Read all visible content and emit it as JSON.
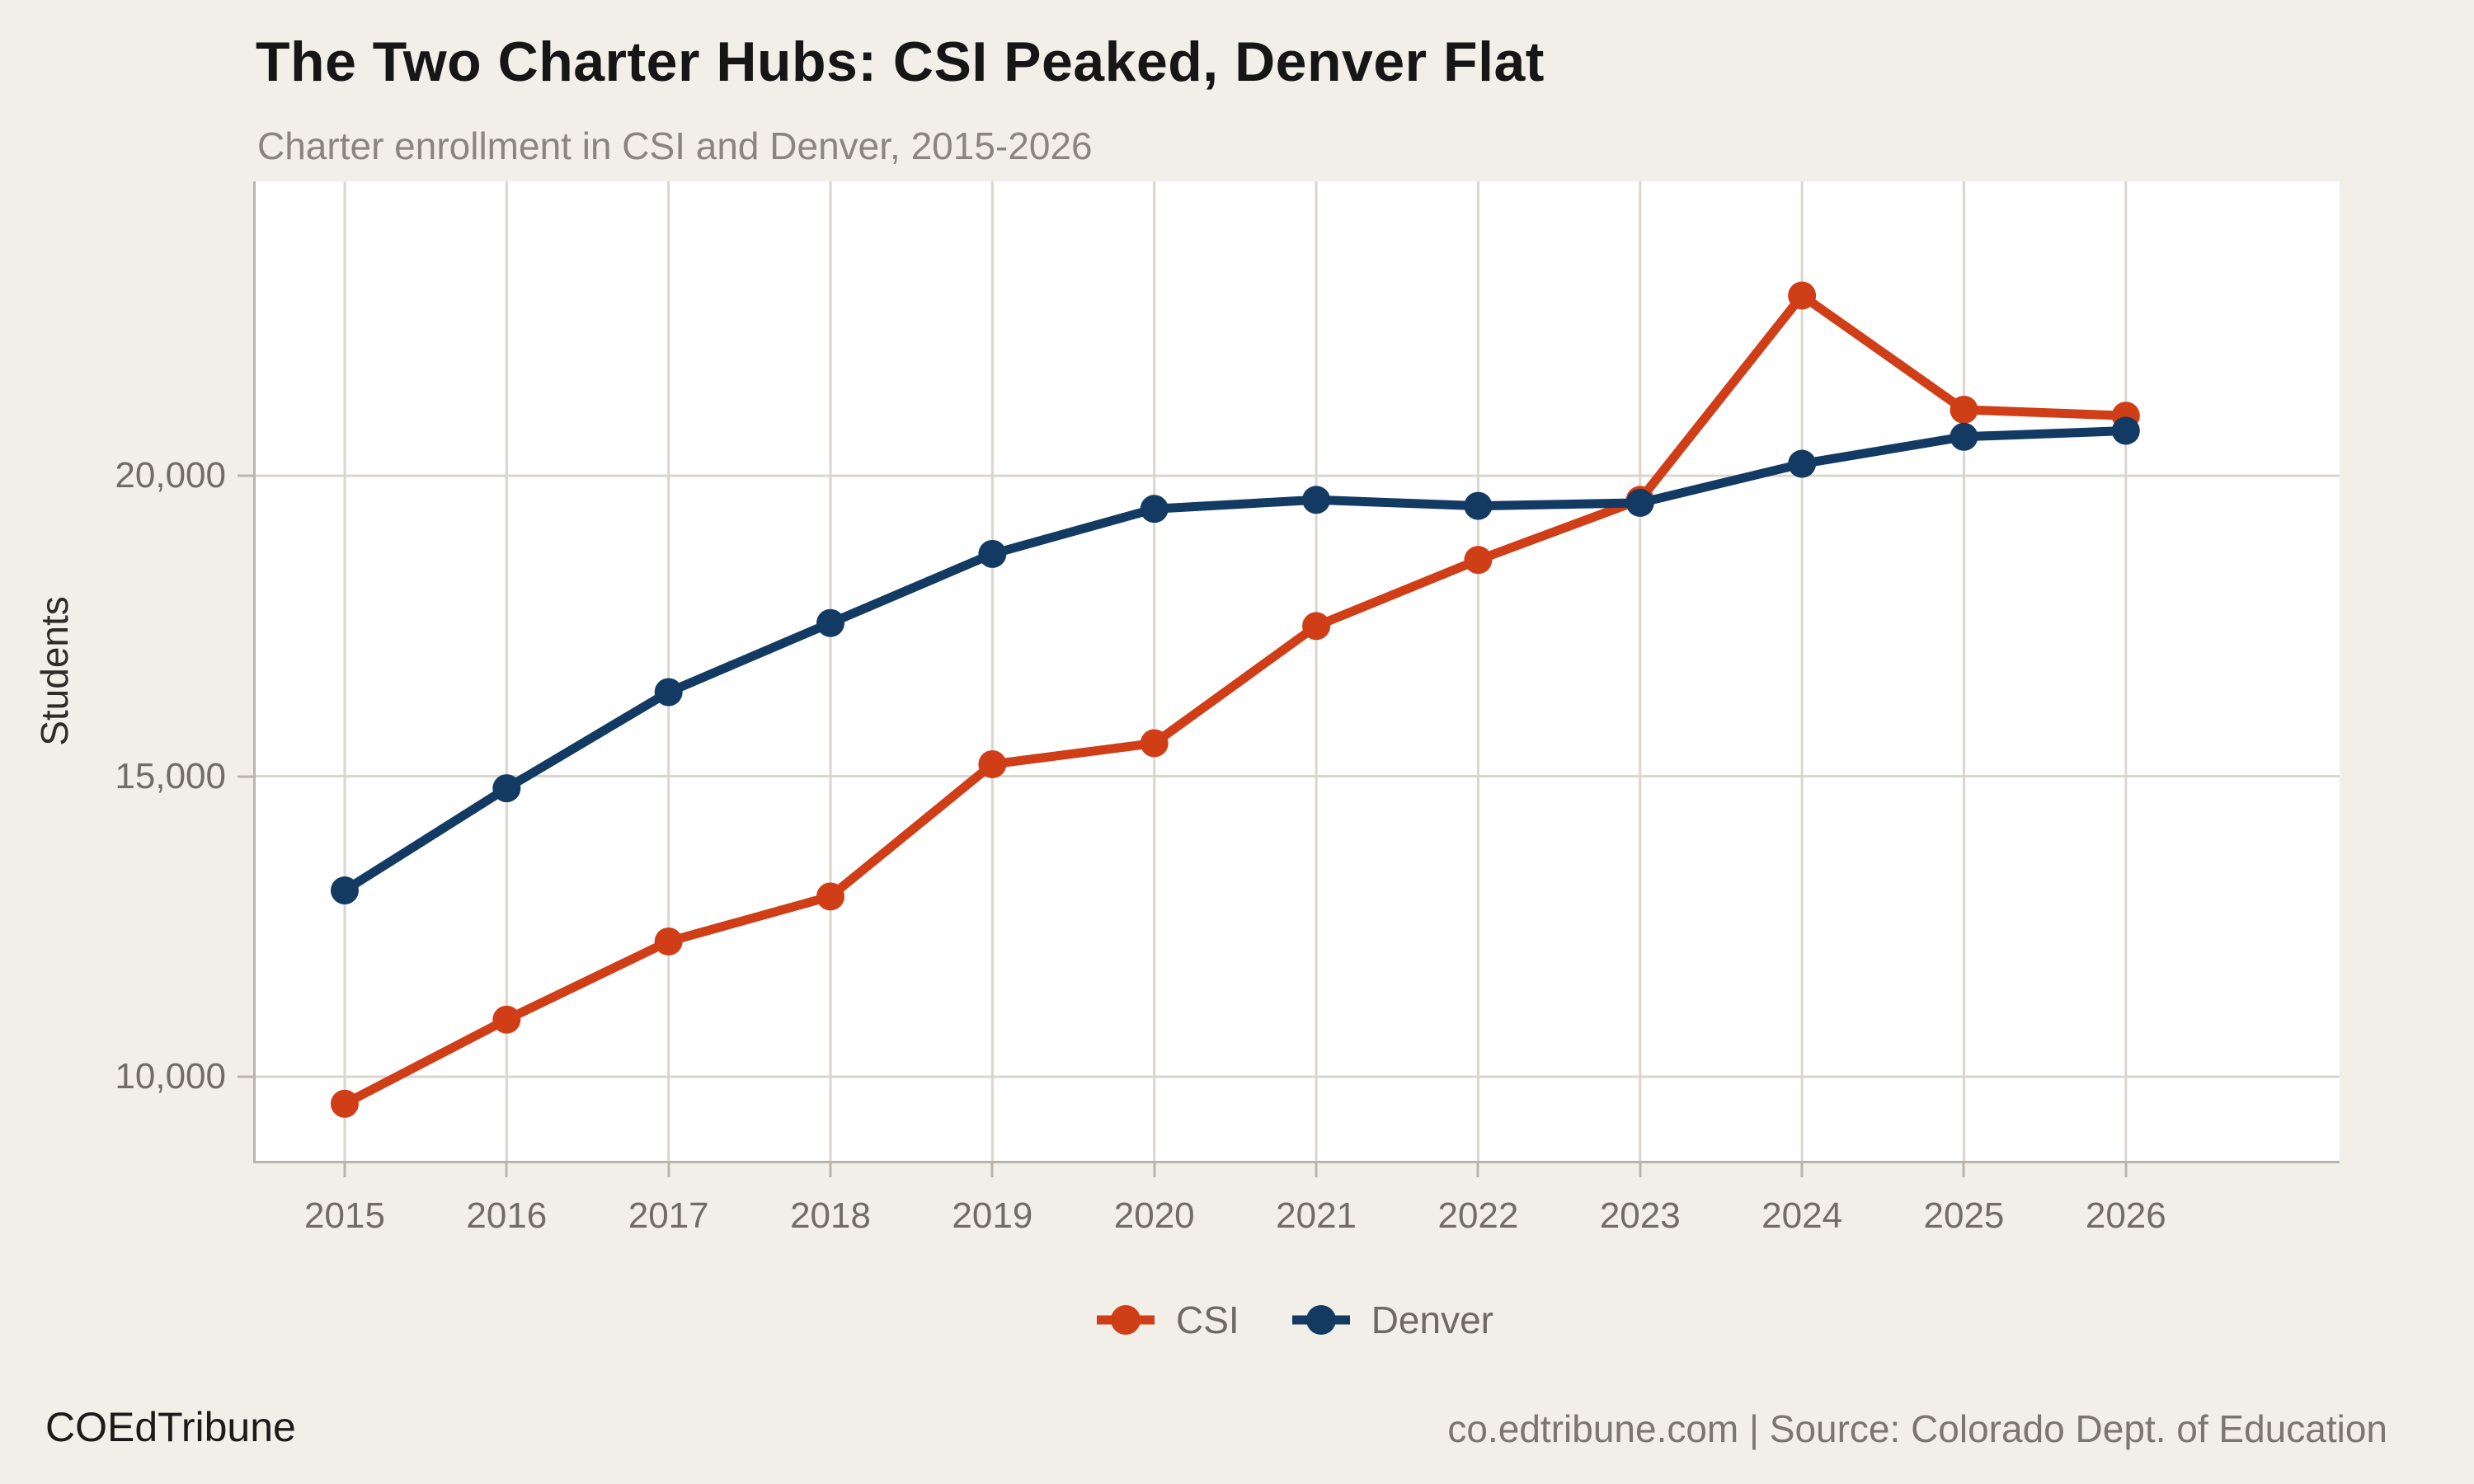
{
  "chart_data": {
    "type": "line",
    "title": "The Two Charter Hubs: CSI Peaked, Denver Flat",
    "subtitle": "Charter enrollment in CSI and Denver, 2015-2026",
    "ylabel": "Students",
    "xlabel": "",
    "x": [
      2015,
      2016,
      2017,
      2018,
      2019,
      2020,
      2021,
      2022,
      2023,
      2024,
      2025,
      2026
    ],
    "series": [
      {
        "name": "CSI",
        "color": "#cf3e16",
        "values": [
          9550,
          10950,
          12250,
          13000,
          15200,
          15550,
          17500,
          18600,
          19600,
          23000,
          21100,
          21000
        ]
      },
      {
        "name": "Denver",
        "color": "#123a63",
        "values": [
          13100,
          14800,
          16400,
          17550,
          18700,
          19450,
          19600,
          19500,
          19550,
          20200,
          20650,
          20750
        ]
      }
    ],
    "yticks": [
      10000,
      15000,
      20000
    ],
    "ytick_labels": [
      "10,000",
      "15,000",
      "20,000"
    ],
    "ylim": [
      8600,
      24900
    ],
    "xlim": [
      2014.45,
      2027.32
    ],
    "grid": true,
    "legend_position": "bottom",
    "background_color": "#f2efe9",
    "panel_color": "#ffffff",
    "grid_color": "#dad6cf",
    "axis_color": "#b9b5ae",
    "tick_text_color": "#716c66"
  },
  "footer": {
    "brand": "COEdTribune",
    "source": "co.edtribune.com | Source: Colorado Dept. of Education"
  }
}
